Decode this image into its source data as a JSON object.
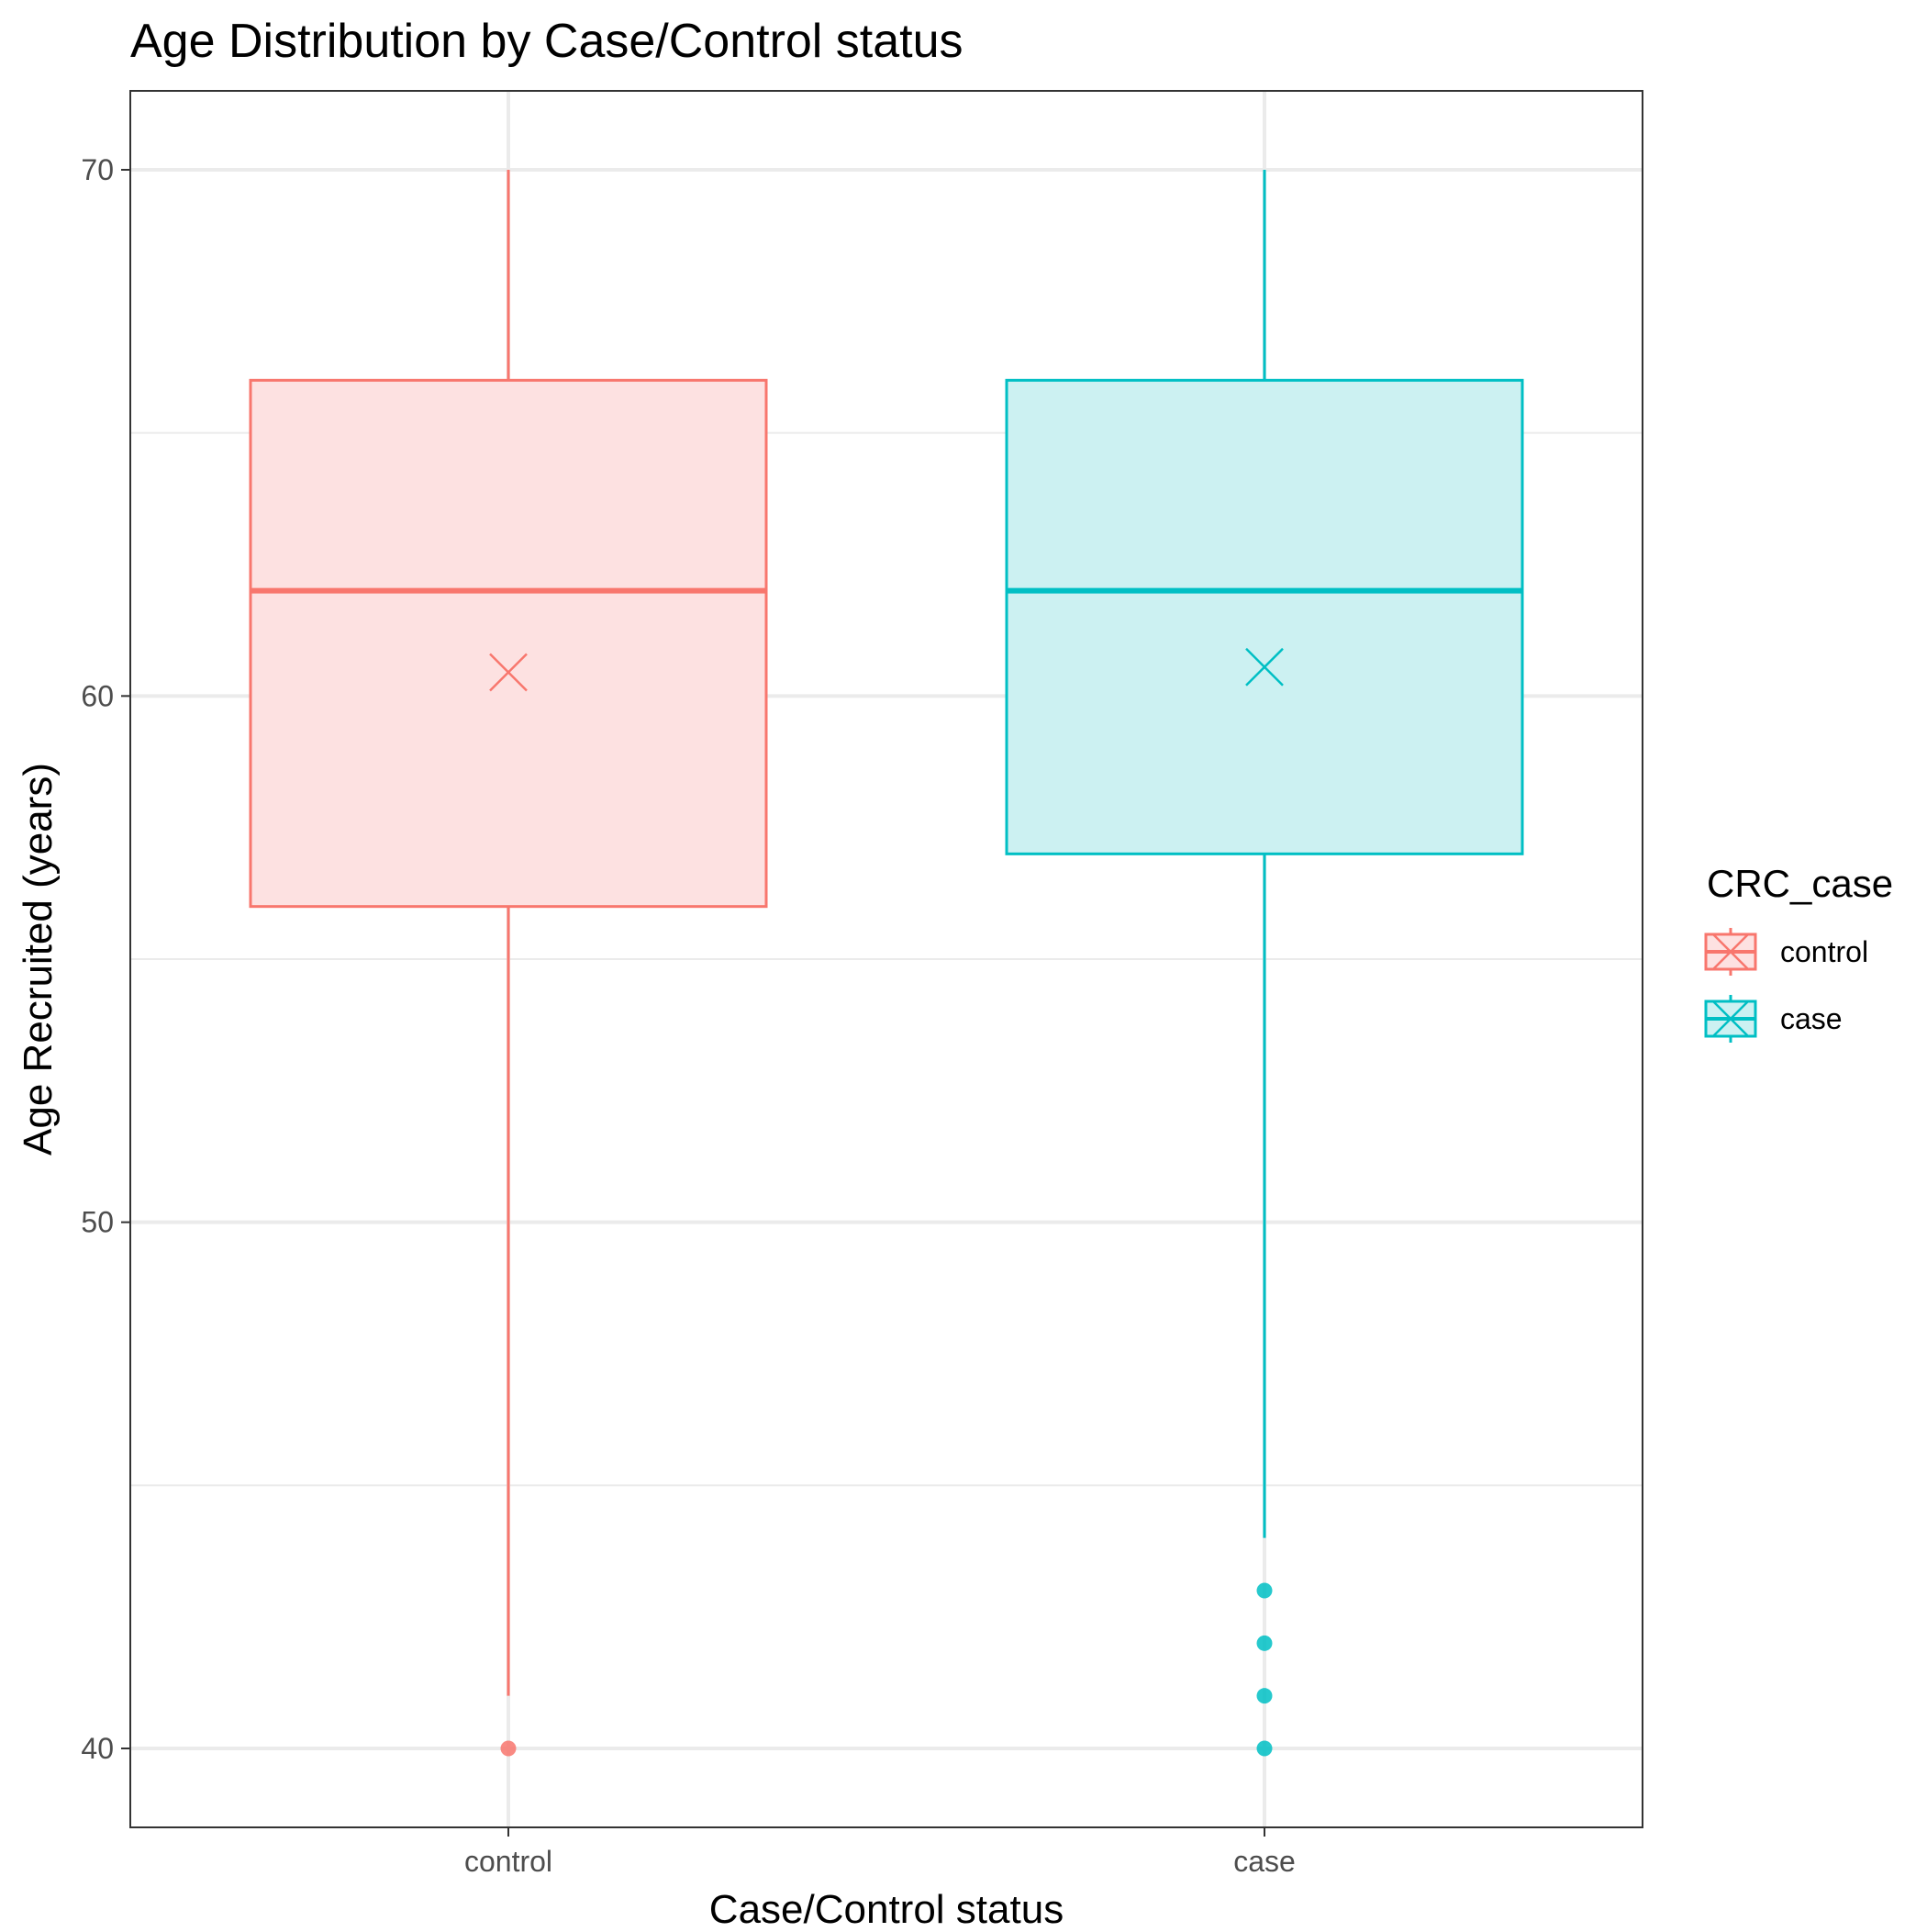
{
  "chart_data": {
    "type": "box",
    "title": "Age Distribution by Case/Control status",
    "xlabel": "Case/Control status",
    "ylabel": "Age Recruited (years)",
    "categories": [
      "control",
      "case"
    ],
    "ylim": [
      38.5,
      71.5
    ],
    "yticks": [
      40,
      50,
      60,
      70
    ],
    "grid": true,
    "legend": {
      "title": "CRC_case",
      "placement": "right",
      "entries": [
        "control",
        "case"
      ]
    },
    "series": [
      {
        "name": "control",
        "color": "#F8766D",
        "fill": "#FDE1E1",
        "whisker_low": 41,
        "q1": 56,
        "median": 62,
        "q3": 66,
        "whisker_high": 70,
        "mean": 60.45,
        "outliers": [
          40
        ]
      },
      {
        "name": "case",
        "color": "#00BFC4",
        "fill": "#CCF1F2",
        "whisker_low": 44,
        "q1": 57,
        "median": 62,
        "q3": 66,
        "whisker_high": 70,
        "mean": 60.55,
        "outliers": [
          43,
          42,
          41,
          40
        ]
      }
    ]
  }
}
